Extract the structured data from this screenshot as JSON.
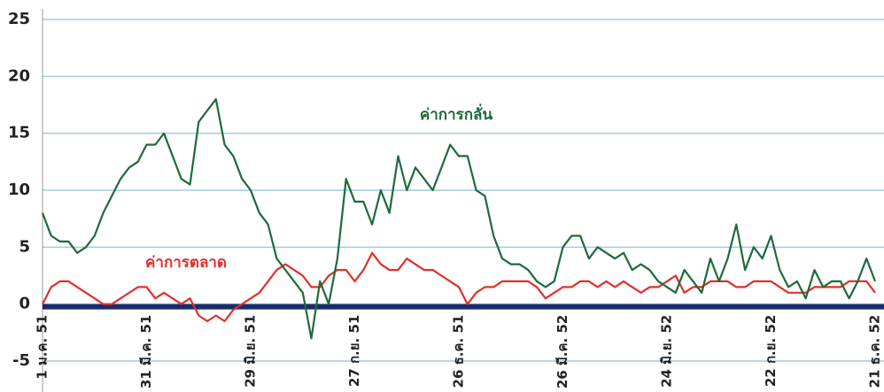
{
  "chart_data": {
    "type": "line",
    "categories": [
      "1 ม.ค. 51",
      null,
      null,
      null,
      null,
      null,
      null,
      null,
      null,
      null,
      null,
      null,
      "31 มี.ค. 51",
      null,
      null,
      null,
      null,
      null,
      null,
      null,
      null,
      null,
      null,
      null,
      "29 มิ.ย. 51",
      null,
      null,
      null,
      null,
      null,
      null,
      null,
      null,
      null,
      null,
      null,
      "27 ก.ย. 51",
      null,
      null,
      null,
      null,
      null,
      null,
      null,
      null,
      null,
      null,
      null,
      "26 ธ.ค. 51",
      null,
      null,
      null,
      null,
      null,
      null,
      null,
      null,
      null,
      null,
      null,
      "26 มี.ค. 52",
      null,
      null,
      null,
      null,
      null,
      null,
      null,
      null,
      null,
      null,
      null,
      "24 มิ.ย. 52",
      null,
      null,
      null,
      null,
      null,
      null,
      null,
      null,
      null,
      null,
      null,
      "22 ก.ย. 52",
      null,
      null,
      null,
      null,
      null,
      null,
      null,
      null,
      null,
      null,
      null,
      "21 ธ.ค. 52"
    ],
    "series": [
      {
        "name": "ค่าการตลาด",
        "color": "#e0302c",
        "values": [
          0,
          1.5,
          2,
          2,
          1.5,
          1,
          0.5,
          0,
          0,
          0.5,
          1,
          1.5,
          1.5,
          0.5,
          1,
          0.5,
          0,
          0.5,
          -1,
          -1.5,
          -1,
          -1.5,
          -0.5,
          0,
          0.5,
          1,
          2,
          3,
          3.5,
          3,
          2.5,
          1.5,
          1.5,
          2.5,
          3,
          3,
          2,
          3,
          4.5,
          3.5,
          3,
          3,
          4,
          3.5,
          3,
          3,
          2.5,
          2,
          1.5,
          0,
          1,
          1.5,
          1.5,
          2,
          2,
          2,
          2,
          1.5,
          0.5,
          1,
          1.5,
          1.5,
          2,
          2,
          1.5,
          2,
          1.5,
          2,
          1.5,
          1,
          1.5,
          1.5,
          2,
          2.5,
          1,
          1.5,
          1.5,
          2,
          2,
          2,
          1.5,
          1.5,
          2,
          2,
          2,
          1.5,
          1,
          1,
          1,
          1.5,
          1.5,
          1.5,
          1.5,
          2,
          2,
          2,
          1
        ]
      },
      {
        "name": "ค่าการกลั่น",
        "color": "#1d6b3a",
        "values": [
          8,
          6,
          5.5,
          5.5,
          4.5,
          5,
          6,
          8,
          9.5,
          11,
          12,
          12.5,
          14,
          14,
          15,
          13,
          11,
          10.5,
          16,
          17,
          18,
          14,
          13,
          11,
          10,
          8,
          7,
          4,
          3,
          2,
          1,
          -3,
          2,
          0,
          4,
          11,
          9,
          9,
          7,
          10,
          8,
          13,
          10,
          12,
          11,
          10,
          12,
          14,
          13,
          13,
          10,
          9.5,
          6,
          4,
          3.5,
          3.5,
          3,
          2,
          1.5,
          2,
          5,
          6,
          6,
          4,
          5,
          4.5,
          4,
          4.5,
          3,
          3.5,
          3,
          2,
          1.5,
          1,
          3,
          2,
          1,
          4,
          2,
          4,
          7,
          3,
          5,
          4,
          6,
          3,
          1.5,
          2,
          0.5,
          3,
          1.5,
          2,
          2,
          0.5,
          2,
          4,
          2
        ]
      }
    ],
    "ylim": [
      -5,
      25
    ],
    "yticks": [
      -5,
      0,
      5,
      10,
      15,
      20,
      25
    ],
    "grid": true
  }
}
